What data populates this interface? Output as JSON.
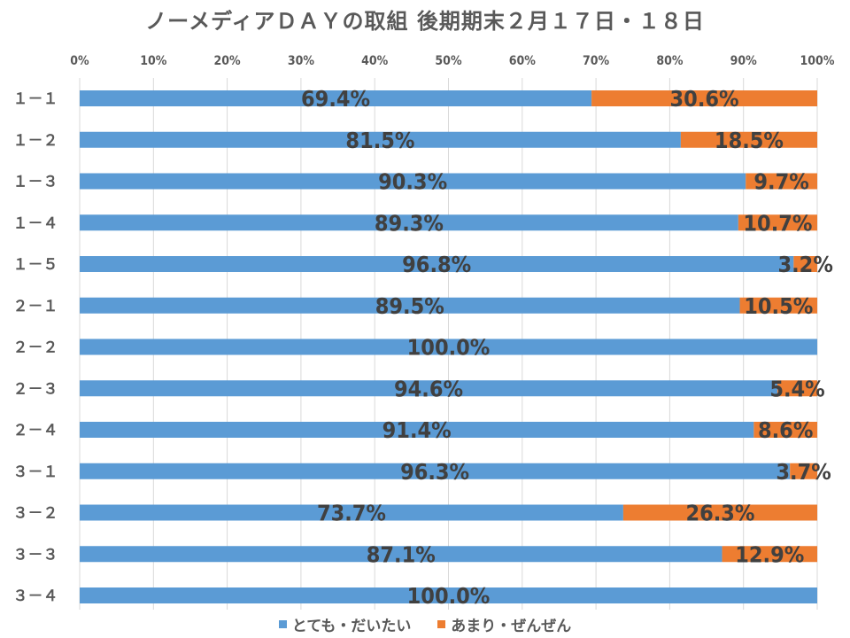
{
  "chart_data": {
    "type": "bar",
    "orientation": "horizontal",
    "stacked": "percent",
    "title": "ノーメディアＤＡＹの取組 後期期末２月１７日・１８日",
    "categories": [
      "１－１",
      "１－２",
      "１－３",
      "１－４",
      "１－５",
      "２－１",
      "２－２",
      "２－３",
      "２－４",
      "３－１",
      "３－２",
      "３－３",
      "３－４"
    ],
    "series": [
      {
        "name": "とても・だいたい",
        "color": "#5B9BD5",
        "values": [
          69.4,
          81.5,
          90.3,
          89.3,
          96.8,
          89.5,
          100.0,
          94.6,
          91.4,
          96.3,
          73.7,
          87.1,
          100.0
        ],
        "labels": [
          "69.4%",
          "81.5%",
          "90.3%",
          "89.3%",
          "96.8%",
          "89.5%",
          "100.0%",
          "94.6%",
          "91.4%",
          "96.3%",
          "73.7%",
          "87.1%",
          "100.0%"
        ]
      },
      {
        "name": "あまり・ぜんぜん",
        "color": "#ED7D31",
        "values": [
          30.6,
          18.5,
          9.7,
          10.7,
          3.2,
          10.5,
          0,
          5.4,
          8.6,
          3.7,
          26.3,
          12.9,
          0
        ],
        "labels": [
          "30.6%",
          "18.5%",
          "9.7%",
          "10.7%",
          "3.2%",
          "10.5%",
          "",
          "5.4%",
          "8.6%",
          "3.7%",
          "26.3%",
          "12.9%",
          ""
        ]
      }
    ],
    "xaxis": {
      "position": "top",
      "ticks": [
        "0%",
        "10%",
        "20%",
        "30%",
        "40%",
        "50%",
        "60%",
        "70%",
        "80%",
        "90%",
        "100%"
      ],
      "range": [
        0,
        100
      ]
    },
    "grid": true,
    "legend": "bottom",
    "data_label_color": "#404040"
  }
}
